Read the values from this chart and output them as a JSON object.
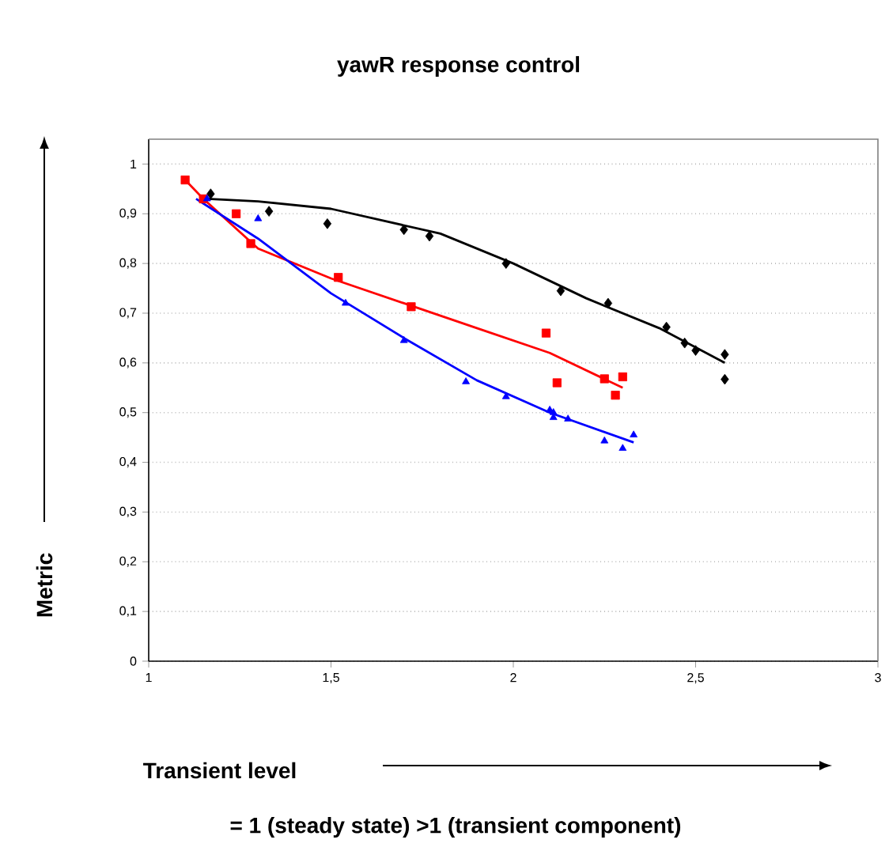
{
  "chart_data": {
    "type": "scatter",
    "title": "yawR response control",
    "xlabel": "Transient level",
    "ylabel": "Metric",
    "annotations": [
      "= 1 (steady state)    >1 (transient component)"
    ],
    "xlim": [
      1,
      3
    ],
    "ylim": [
      0,
      1.05
    ],
    "xticks": [
      1,
      {
        "value": 1.5,
        "label": "1,5"
      },
      2,
      {
        "value": 2.5,
        "label": "2,5"
      },
      3
    ],
    "yticks": [
      0,
      {
        "value": 0.1,
        "label": "0,1"
      },
      {
        "value": 0.2,
        "label": "0,2"
      },
      {
        "value": 0.3,
        "label": "0,3"
      },
      {
        "value": 0.4,
        "label": "0,4"
      },
      {
        "value": 0.5,
        "label": "0,5"
      },
      {
        "value": 0.6,
        "label": "0,6"
      },
      {
        "value": 0.7,
        "label": "0,7"
      },
      {
        "value": 0.8,
        "label": "0,8"
      },
      {
        "value": 0.9,
        "label": "0,9"
      },
      1
    ],
    "grid": "y",
    "series": [
      {
        "marker": "diamond",
        "color": "#000000",
        "x": [
          1.17,
          1.33,
          1.49,
          1.7,
          1.77,
          1.98,
          2.13,
          2.26,
          2.42,
          2.47,
          2.5,
          2.58,
          2.58
        ],
        "values": [
          0.94,
          0.905,
          0.88,
          0.868,
          0.855,
          0.8,
          0.745,
          0.72,
          0.672,
          0.64,
          0.625,
          0.617,
          0.567
        ]
      },
      {
        "marker": "square",
        "color": "#ff0000",
        "x": [
          1.1,
          1.15,
          1.24,
          1.28,
          1.52,
          1.72,
          2.09,
          2.12,
          2.25,
          2.28,
          2.3
        ],
        "values": [
          0.968,
          0.93,
          0.9,
          0.84,
          0.772,
          0.713,
          0.66,
          0.56,
          0.568,
          0.535,
          0.572
        ]
      },
      {
        "marker": "triangle",
        "color": "#0000ff",
        "x": [
          1.16,
          1.3,
          1.54,
          1.7,
          1.87,
          1.98,
          2.1,
          2.11,
          2.11,
          2.15,
          2.25,
          2.3,
          2.33
        ],
        "values": [
          0.93,
          0.89,
          0.72,
          0.645,
          0.562,
          0.532,
          0.505,
          0.5,
          0.49,
          0.487,
          0.443,
          0.428,
          0.455
        ]
      },
      {
        "type": "line",
        "marker": "none",
        "color": "#000000",
        "x": [
          1.16,
          1.3,
          1.5,
          1.8,
          2.0,
          2.2,
          2.4,
          2.58
        ],
        "values": [
          0.93,
          0.925,
          0.91,
          0.86,
          0.8,
          0.73,
          0.67,
          0.6
        ]
      },
      {
        "type": "line",
        "marker": "none",
        "color": "#ff0000",
        "x": [
          1.1,
          1.15,
          1.3,
          1.5,
          1.7,
          1.9,
          2.1,
          2.3
        ],
        "values": [
          0.968,
          0.93,
          0.83,
          0.77,
          0.72,
          0.67,
          0.62,
          0.55
        ]
      },
      {
        "type": "line",
        "marker": "none",
        "color": "#0000ff",
        "x": [
          1.13,
          1.3,
          1.5,
          1.7,
          1.9,
          2.1,
          2.33
        ],
        "values": [
          0.93,
          0.85,
          0.74,
          0.65,
          0.565,
          0.5,
          0.44
        ]
      }
    ]
  }
}
